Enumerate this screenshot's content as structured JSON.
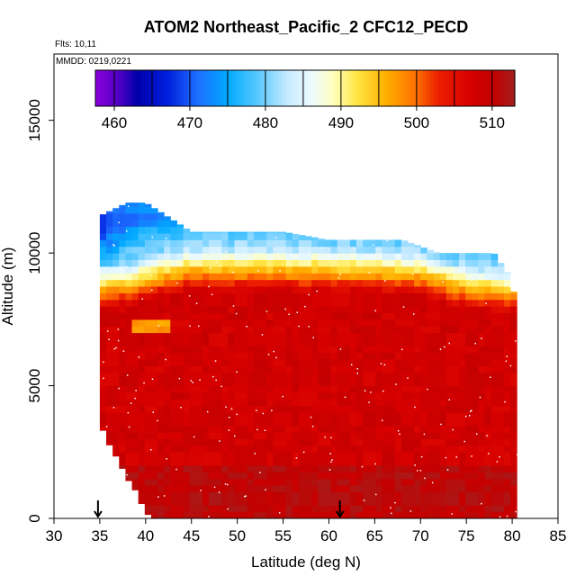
{
  "chart_data": {
    "type": "heatmap",
    "title": "ATOM2 Northeast_Pacific_2 CFC12_PECD",
    "flights_note": "Flts: 10,11",
    "date_note": "MMDD: 0219,0221",
    "xlabel": "Latitude (deg N)",
    "ylabel": "Altitude (m)",
    "xlim": [
      30,
      85
    ],
    "ylim": [
      0,
      17500
    ],
    "x_ticks": [
      30,
      35,
      40,
      45,
      50,
      55,
      60,
      65,
      70,
      75,
      80,
      85
    ],
    "y_ticks": [
      0,
      5000,
      10000,
      15000
    ],
    "grid": false,
    "colorbar": {
      "range": [
        457.5,
        513
      ],
      "ticks": [
        460,
        470,
        480,
        490,
        500,
        510
      ],
      "boundaries": [
        460,
        465,
        470,
        475,
        480,
        485,
        490,
        495,
        500,
        505,
        510
      ],
      "placement": "top"
    },
    "profile_markers": [
      34.8,
      61.2
    ],
    "profile_marker_symbol": "↓",
    "data_extent": {
      "lat_range": [
        35,
        80.5
      ],
      "alt_range": [
        0,
        11900
      ],
      "bottom_edge": [
        [
          35,
          3600
        ],
        [
          36,
          2800
        ],
        [
          37,
          2200
        ],
        [
          38,
          1500
        ],
        [
          39,
          1000
        ],
        [
          40,
          200
        ],
        [
          41,
          0
        ]
      ],
      "top_edge": [
        [
          35,
          11400
        ],
        [
          38,
          11900
        ],
        [
          40,
          11900
        ],
        [
          45,
          10800
        ],
        [
          55,
          10800
        ],
        [
          60,
          10500
        ],
        [
          68,
          10500
        ],
        [
          72,
          10000
        ],
        [
          78,
          10000
        ],
        [
          80,
          9000
        ],
        [
          80.5,
          7500
        ]
      ]
    },
    "field_summary": [
      {
        "region": "upper troposphere south (35-40N, 10500-11900 m)",
        "lat_range": [
          35,
          40
        ],
        "alt_range": [
          10500,
          11900
        ],
        "value": 470
      },
      {
        "region": "upper troposphere mid (40-55N, 10000-11200 m)",
        "lat_range": [
          40,
          55
        ],
        "alt_range": [
          10000,
          11200
        ],
        "value": 478
      },
      {
        "region": "upper troposphere north (68-80N, 9800-10600 m)",
        "lat_range": [
          68,
          80
        ],
        "alt_range": [
          9800,
          10600
        ],
        "value": 475
      },
      {
        "region": "tropopause transition band",
        "lat_range": [
          35,
          80
        ],
        "alt_range": [
          8300,
          10000
        ],
        "value": 496
      },
      {
        "region": "tongue at 38-43N, 7000-7500 m",
        "lat_range": [
          38,
          43
        ],
        "alt_range": [
          6900,
          7600
        ],
        "value": 496
      },
      {
        "region": "troposphere bulk (surface to ~8000 m)",
        "lat_range": [
          35,
          80.5
        ],
        "alt_range": [
          0,
          8300
        ],
        "value": 508
      },
      {
        "region": "darker high values near surface",
        "lat_range": [
          38,
          80
        ],
        "alt_range": [
          0,
          2000
        ],
        "value": 511
      }
    ]
  }
}
